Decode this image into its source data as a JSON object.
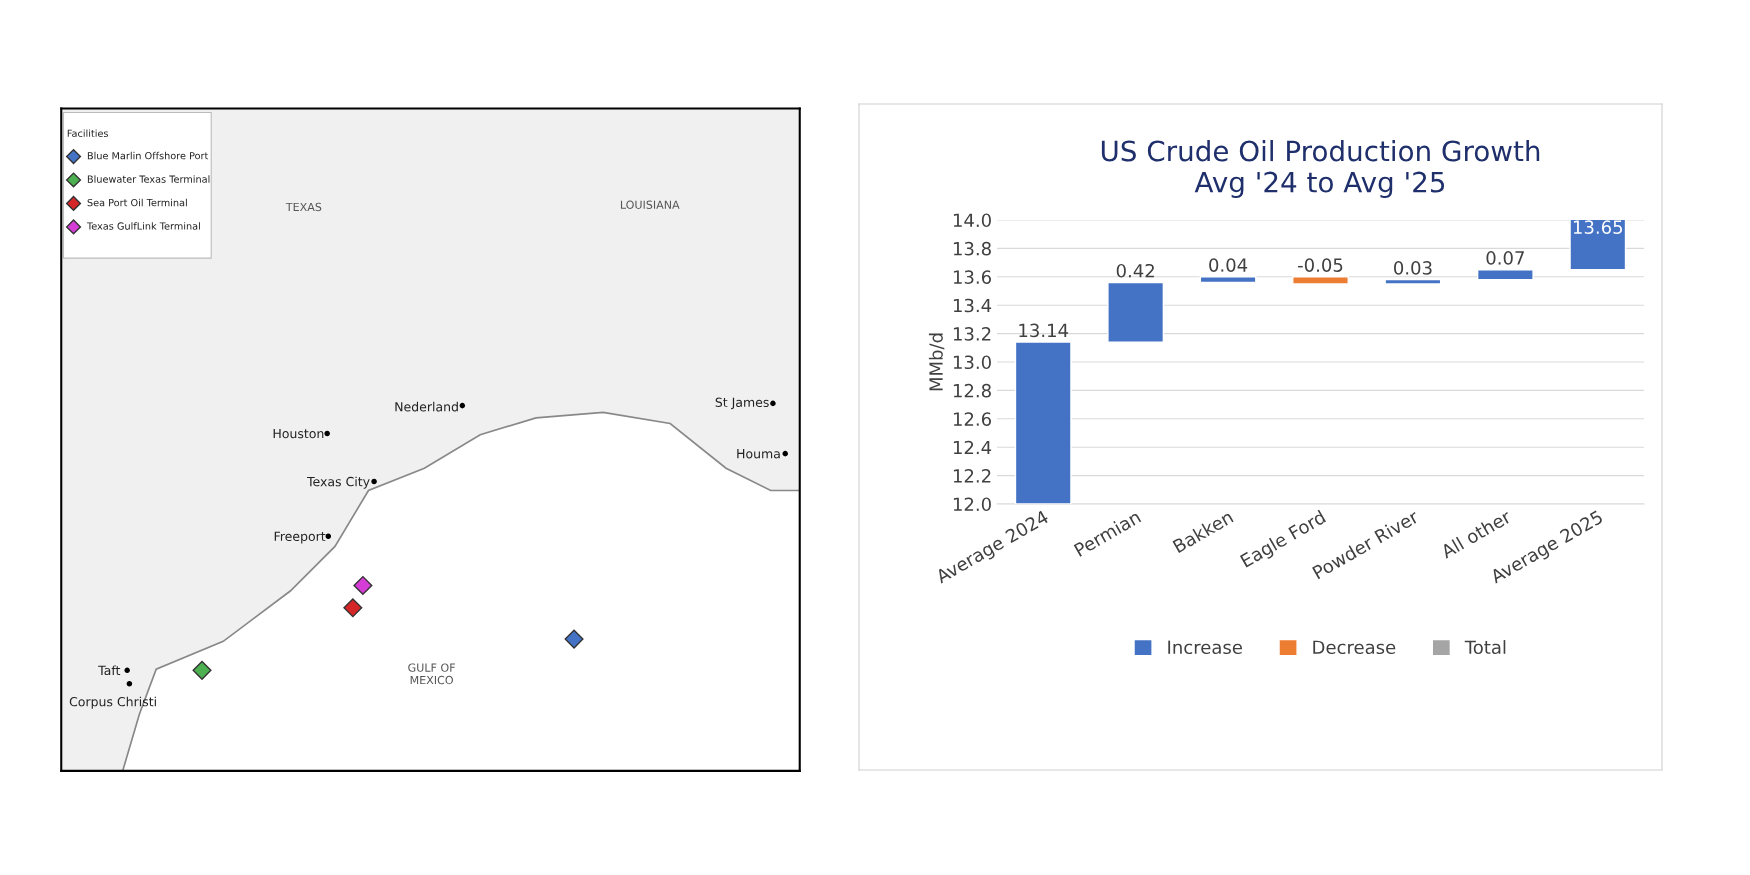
{
  "chart_data": [
    {
      "type": "other",
      "annotations": [
        "Facilities",
        "Blue Marlin Offshore Port",
        "Bluewater Texas Terminal",
        "Sea Port Oil Terminal",
        "Texas GulfLink Terminal",
        "TEXAS",
        "LOUISIANA",
        "Nederland",
        "Houston",
        "Texas City",
        "Freeport",
        "St James",
        "Houma",
        "GULF OF\nMEXICO",
        "Taft",
        "Corpus Christi"
      ]
    },
    {
      "type": "bar",
      "title": "US Crude Oil Production Growth\nAvg '24 to Avg '25",
      "ylabel": "MMb/d",
      "categories": [
        "Average 2024",
        "Permian",
        "Bakken",
        "Eagle Ford",
        "Powder River",
        "All other",
        "Average 2025"
      ],
      "series": [
        {
          "name": "Increase",
          "color": "#4472c4",
          "base": [
            12.0,
            13.14,
            13.56,
            null,
            13.55,
            13.58,
            13.65
          ],
          "values": [
            1.14,
            0.42,
            0.04,
            null,
            0.03,
            0.07,
            0.37
          ]
        },
        {
          "name": "Decrease",
          "color": "#ed7d31",
          "base": [
            null,
            null,
            null,
            13.6,
            null,
            null,
            null
          ],
          "values": [
            null,
            null,
            null,
            -0.05,
            null,
            null,
            null
          ]
        },
        {
          "name": "Total",
          "color": "#a5a5a5",
          "values": [
            null,
            null,
            null,
            null,
            null,
            null,
            null
          ]
        }
      ],
      "value_labels": [
        "13.14",
        "0.42",
        "0.04",
        "-0.05",
        "0.03",
        "0.07",
        "13.65"
      ],
      "ylim": [
        12.0,
        14.0
      ],
      "yticks": [
        {
          "value": 12.0,
          "label": "12.0"
        },
        {
          "value": 12.2,
          "label": "12.2"
        },
        {
          "value": 12.4,
          "label": "12.4"
        },
        {
          "value": 12.6,
          "label": "12.6"
        },
        {
          "value": 12.8,
          "label": "12.8"
        },
        {
          "value": 13.0,
          "label": "13.0"
        },
        {
          "value": 13.2,
          "label": "13.2"
        },
        {
          "value": 13.4,
          "label": "13.4"
        },
        {
          "value": 13.6,
          "label": "13.6"
        },
        {
          "value": 13.8,
          "label": "13.8"
        },
        {
          "value": 14.0,
          "label": "14.0"
        }
      ],
      "grid": "y",
      "legend": "bottom"
    }
  ]
}
